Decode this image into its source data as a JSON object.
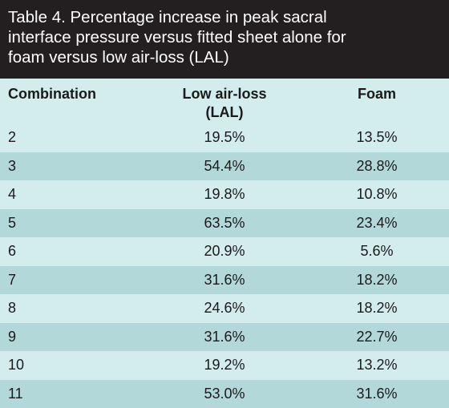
{
  "table": {
    "title_lines": [
      "Table 4. Percentage increase in peak sacral",
      "interface pressure versus fitted sheet alone for",
      "foam versus low air-loss (LAL)"
    ],
    "headers": {
      "combination": "Combination",
      "lal_line1": "Low air-loss",
      "lal_line2": "(LAL)",
      "foam": "Foam"
    },
    "rows": [
      {
        "combination": "2",
        "lal": "19.5%",
        "foam": "13.5%"
      },
      {
        "combination": "3",
        "lal": "54.4%",
        "foam": "28.8%"
      },
      {
        "combination": "4",
        "lal": "19.8%",
        "foam": "10.8%"
      },
      {
        "combination": "5",
        "lal": "63.5%",
        "foam": "23.4%"
      },
      {
        "combination": "6",
        "lal": "20.9%",
        "foam": "5.6%"
      },
      {
        "combination": "7",
        "lal": "31.6%",
        "foam": "18.2%"
      },
      {
        "combination": "8",
        "lal": "24.6%",
        "foam": "18.2%"
      },
      {
        "combination": "9",
        "lal": "31.6%",
        "foam": "22.7%"
      },
      {
        "combination": "10",
        "lal": "19.2%",
        "foam": "13.2%"
      },
      {
        "combination": "11",
        "lal": "53.0%",
        "foam": "31.6%"
      }
    ]
  }
}
